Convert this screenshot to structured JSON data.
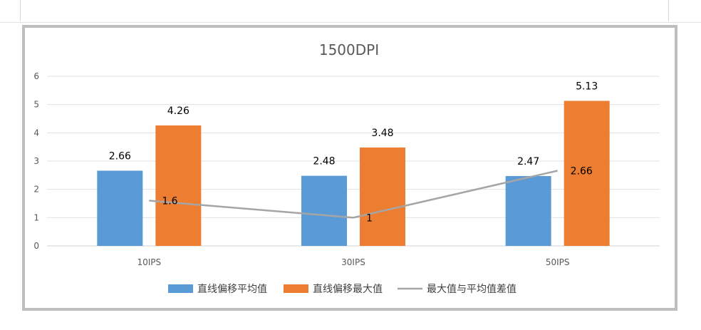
{
  "chart_data": {
    "type": "bar",
    "title": "1500DPI",
    "categories": [
      "10IPS",
      "30IPS",
      "50IPS"
    ],
    "ylim": [
      0,
      6
    ],
    "yticks": [
      0,
      1,
      2,
      3,
      4,
      5,
      6
    ],
    "grid": true,
    "legend_position": "bottom",
    "series": [
      {
        "name": "直线偏移平均值",
        "kind": "bar",
        "color": "#5B9BD5",
        "values": [
          2.66,
          2.48,
          2.47
        ],
        "labels": [
          "2.66",
          "2.48",
          "2.47"
        ]
      },
      {
        "name": "直线偏移最大值",
        "kind": "bar",
        "color": "#ED7D31",
        "values": [
          4.26,
          3.48,
          5.13
        ],
        "labels": [
          "4.26",
          "3.48",
          "5.13"
        ]
      },
      {
        "name": "最大值与平均值差值",
        "kind": "line",
        "color": "#A5A5A5",
        "values": [
          1.6,
          1,
          2.66
        ],
        "labels": [
          "1.6",
          "1",
          "2.66"
        ]
      }
    ]
  }
}
